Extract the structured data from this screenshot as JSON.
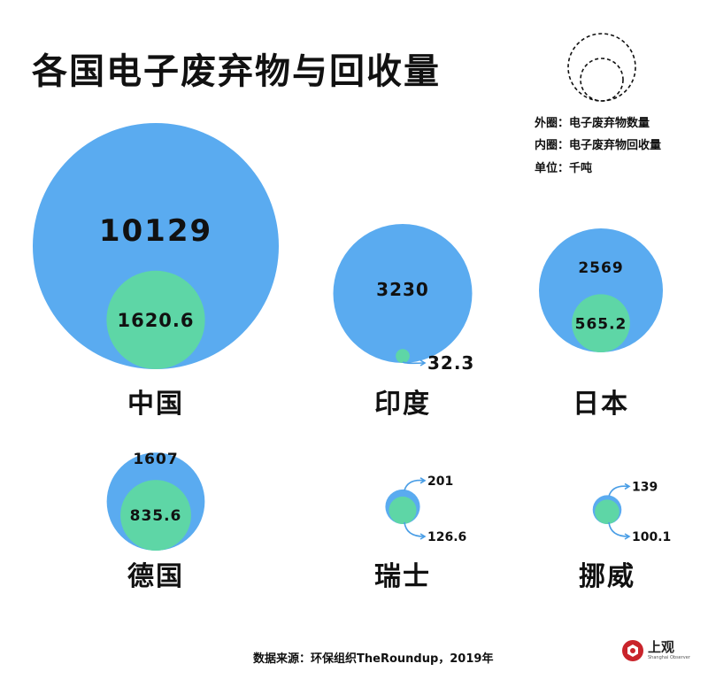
{
  "title": "各国电子废弃物与回收量",
  "legend": {
    "outer": "外圈：电子废弃物数量",
    "inner": "内圈：电子废弃物回收量",
    "unit": "单位：千吨"
  },
  "source": "数据来源：环保组织TheRoundup，2019年",
  "logo": {
    "text": "上观",
    "subtitle": "Shanghai Observer"
  },
  "colors": {
    "outer": "#5aabf0",
    "inner": "#5ed6a6",
    "arrow": "#4a9ee6",
    "text": "#111111"
  },
  "chart_data": {
    "type": "bubble",
    "title": "各国电子废弃物与回收量",
    "unit": "千吨",
    "series": [
      {
        "name": "电子废弃物数量",
        "ring": "outer"
      },
      {
        "name": "电子废弃物回收量",
        "ring": "inner"
      }
    ],
    "countries": [
      {
        "name": "中国",
        "waste": 10129,
        "waste_label": "10129",
        "recycled": 1620.6,
        "recycled_label": "1620.6"
      },
      {
        "name": "印度",
        "waste": 3230,
        "waste_label": "3230",
        "recycled": 32.3,
        "recycled_label": "32.3"
      },
      {
        "name": "日本",
        "waste": 2569,
        "waste_label": "2569",
        "recycled": 565.2,
        "recycled_label": "565.2"
      },
      {
        "name": "德国",
        "waste": 1607,
        "waste_label": "1607",
        "recycled": 835.6,
        "recycled_label": "835.6"
      },
      {
        "name": "瑞士",
        "waste": 201,
        "waste_label": "201",
        "recycled": 126.6,
        "recycled_label": "126.6"
      },
      {
        "name": "挪威",
        "waste": 139,
        "waste_label": "139",
        "recycled": 100.1,
        "recycled_label": "100.1"
      }
    ]
  }
}
